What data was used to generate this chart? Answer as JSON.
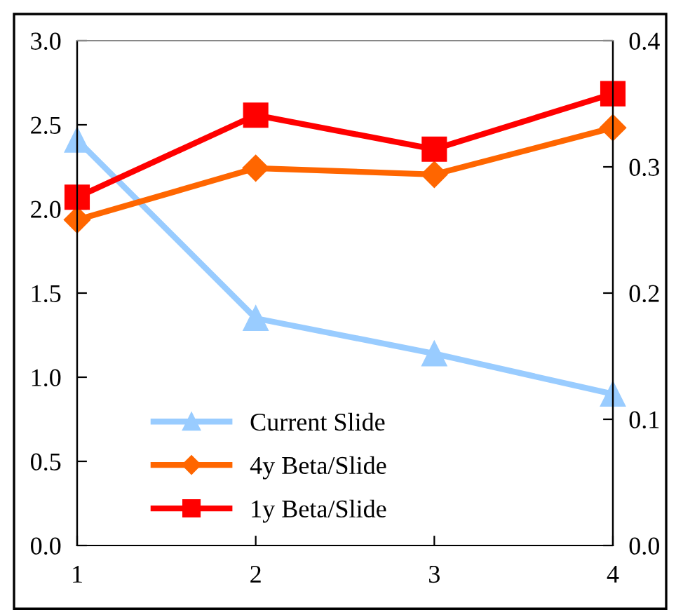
{
  "chart_data": {
    "type": "line",
    "x": [
      1,
      2,
      3,
      4
    ],
    "xlim": [
      1,
      4
    ],
    "xticks": [
      1,
      2,
      3,
      4
    ],
    "ylim": [
      0,
      3.0
    ],
    "yticks": [
      {
        "value": 0,
        "label": "0.0"
      },
      {
        "value": 0.5,
        "label": "0.5"
      },
      {
        "value": 1,
        "label": "1.0"
      },
      {
        "value": 1.5,
        "label": "1.5"
      },
      {
        "value": 2,
        "label": "2.0"
      },
      {
        "value": 2.5,
        "label": "2.5"
      },
      {
        "value": 3,
        "label": "3.0"
      }
    ],
    "y2lim": [
      0,
      0.4
    ],
    "y2ticks": [
      {
        "value": 0,
        "label": "0.0"
      },
      {
        "value": 0.1,
        "label": "0.1"
      },
      {
        "value": 0.2,
        "label": "0.2"
      },
      {
        "value": 0.3,
        "label": "0.3"
      },
      {
        "value": 0.4,
        "label": "0.4"
      }
    ],
    "grid": false,
    "legend": "bottom left",
    "line_style": "solid",
    "series": [
      {
        "name": "Current Slide",
        "color": "#99ccff",
        "marker": "triangle",
        "values": [
          2.41,
          1.35,
          1.14,
          0.9
        ]
      },
      {
        "name": "4y Beta/Slide",
        "color": "#ff6600",
        "marker": "diamond",
        "axis": "y2",
        "values": [
          0.258,
          0.299,
          0.294,
          0.331
        ]
      },
      {
        "name": "1y Beta/Slide",
        "color": "#ff0000",
        "marker": "square",
        "axis": "y2",
        "values": [
          0.276,
          0.341,
          0.314,
          0.358
        ]
      }
    ]
  }
}
